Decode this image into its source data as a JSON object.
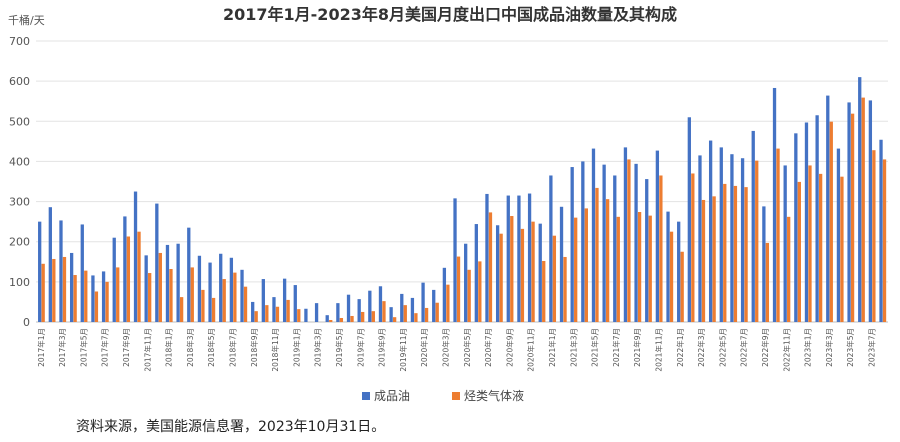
{
  "chart_data": {
    "type": "bar",
    "title": "2017年1月-2023年8月美国月度出口中国成品油数量及其构成",
    "ylabel": "千桶/天",
    "ylim": [
      0,
      700
    ],
    "yticks": [
      0,
      100,
      200,
      300,
      400,
      500,
      600,
      700
    ],
    "grid": true,
    "legend_position": "bottom",
    "source": "资料来源，美国能源信息署，2023年10月31日。",
    "colors": {
      "成品油": "#4472C4",
      "烃类气体液": "#ED7D31"
    },
    "x": [
      "2017年1月",
      "2017年2月",
      "2017年3月",
      "2017年4月",
      "2017年5月",
      "2017年6月",
      "2017年7月",
      "2017年8月",
      "2017年9月",
      "2017年10月",
      "2017年11月",
      "2017年12月",
      "2018年1月",
      "2018年2月",
      "2018年3月",
      "2018年4月",
      "2018年5月",
      "2018年6月",
      "2018年7月",
      "2018年8月",
      "2018年9月",
      "2018年10月",
      "2018年11月",
      "2018年12月",
      "2019年1月",
      "2019年2月",
      "2019年3月",
      "2019年4月",
      "2019年5月",
      "2019年6月",
      "2019年7月",
      "2019年8月",
      "2019年9月",
      "2019年10月",
      "2019年11月",
      "2019年12月",
      "2020年1月",
      "2020年2月",
      "2020年3月",
      "2020年4月",
      "2020年5月",
      "2020年6月",
      "2020年7月",
      "2020年8月",
      "2020年9月",
      "2020年10月",
      "2020年11月",
      "2020年12月",
      "2021年1月",
      "2021年2月",
      "2021年3月",
      "2021年4月",
      "2021年5月",
      "2021年6月",
      "2021年7月",
      "2021年8月",
      "2021年9月",
      "2021年10月",
      "2021年11月",
      "2021年12月",
      "2022年1月",
      "2022年2月",
      "2022年3月",
      "2022年4月",
      "2022年5月",
      "2022年6月",
      "2022年7月",
      "2022年8月",
      "2022年9月",
      "2022年10月",
      "2022年11月",
      "2022年12月",
      "2023年1月",
      "2023年2月",
      "2023年3月",
      "2023年4月",
      "2023年5月",
      "2023年6月",
      "2023年7月",
      "2023年8月"
    ],
    "tick_labels": [
      "2017年1月",
      "2017年3月",
      "2017年5月",
      "2017年7月",
      "2017年9月",
      "2017年11月",
      "2018年1月",
      "2018年3月",
      "2018年5月",
      "2018年7月",
      "2018年9月",
      "2018年11月",
      "2019年1月",
      "2019年3月",
      "2019年5月",
      "2019年7月",
      "2019年9月",
      "2019年11月",
      "2020年1月",
      "2020年3月",
      "2020年5月",
      "2020年7月",
      "2020年9月",
      "2020年11月",
      "2021年1月",
      "2021年3月",
      "2021年5月",
      "2021年7月",
      "2021年9月",
      "2021年11月",
      "2022年1月",
      "2022年3月",
      "2022年5月",
      "2022年7月",
      "2022年9月",
      "2022年11月",
      "2023年1月",
      "2023年3月",
      "2023年5月",
      "2023年7月"
    ],
    "series": [
      {
        "name": "成品油",
        "values": [
          250,
          286,
          253,
          172,
          243,
          116,
          126,
          210,
          263,
          325,
          166,
          295,
          192,
          195,
          235,
          165,
          148,
          170,
          160,
          130,
          50,
          107,
          62,
          108,
          92,
          33,
          47,
          17,
          47,
          68,
          57,
          78,
          89,
          37,
          70,
          60,
          98,
          80,
          135,
          308,
          195,
          244,
          319,
          241,
          315,
          315,
          320,
          245,
          365,
          287,
          386,
          400,
          432,
          392,
          365,
          435,
          394,
          356,
          427,
          275,
          250,
          510,
          415,
          452,
          435,
          418,
          408,
          476,
          288,
          583,
          390,
          470,
          497,
          515,
          564,
          432,
          547,
          610,
          552,
          454
        ]
      },
      {
        "name": "烃类气体液",
        "values": [
          145,
          157,
          162,
          117,
          128,
          76,
          100,
          136,
          213,
          225,
          122,
          172,
          132,
          62,
          136,
          80,
          60,
          107,
          123,
          88,
          27,
          42,
          38,
          55,
          32,
          0,
          0,
          5,
          10,
          15,
          25,
          27,
          52,
          12,
          42,
          22,
          35,
          48,
          93,
          163,
          130,
          151,
          273,
          220,
          264,
          232,
          250,
          152,
          215,
          162,
          260,
          283,
          334,
          306,
          262,
          405,
          274,
          265,
          365,
          225,
          175,
          370,
          304,
          313,
          344,
          339,
          336,
          402,
          197,
          432,
          262,
          349,
          390,
          369,
          499,
          362,
          519,
          559,
          428,
          405
        ]
      }
    ]
  }
}
